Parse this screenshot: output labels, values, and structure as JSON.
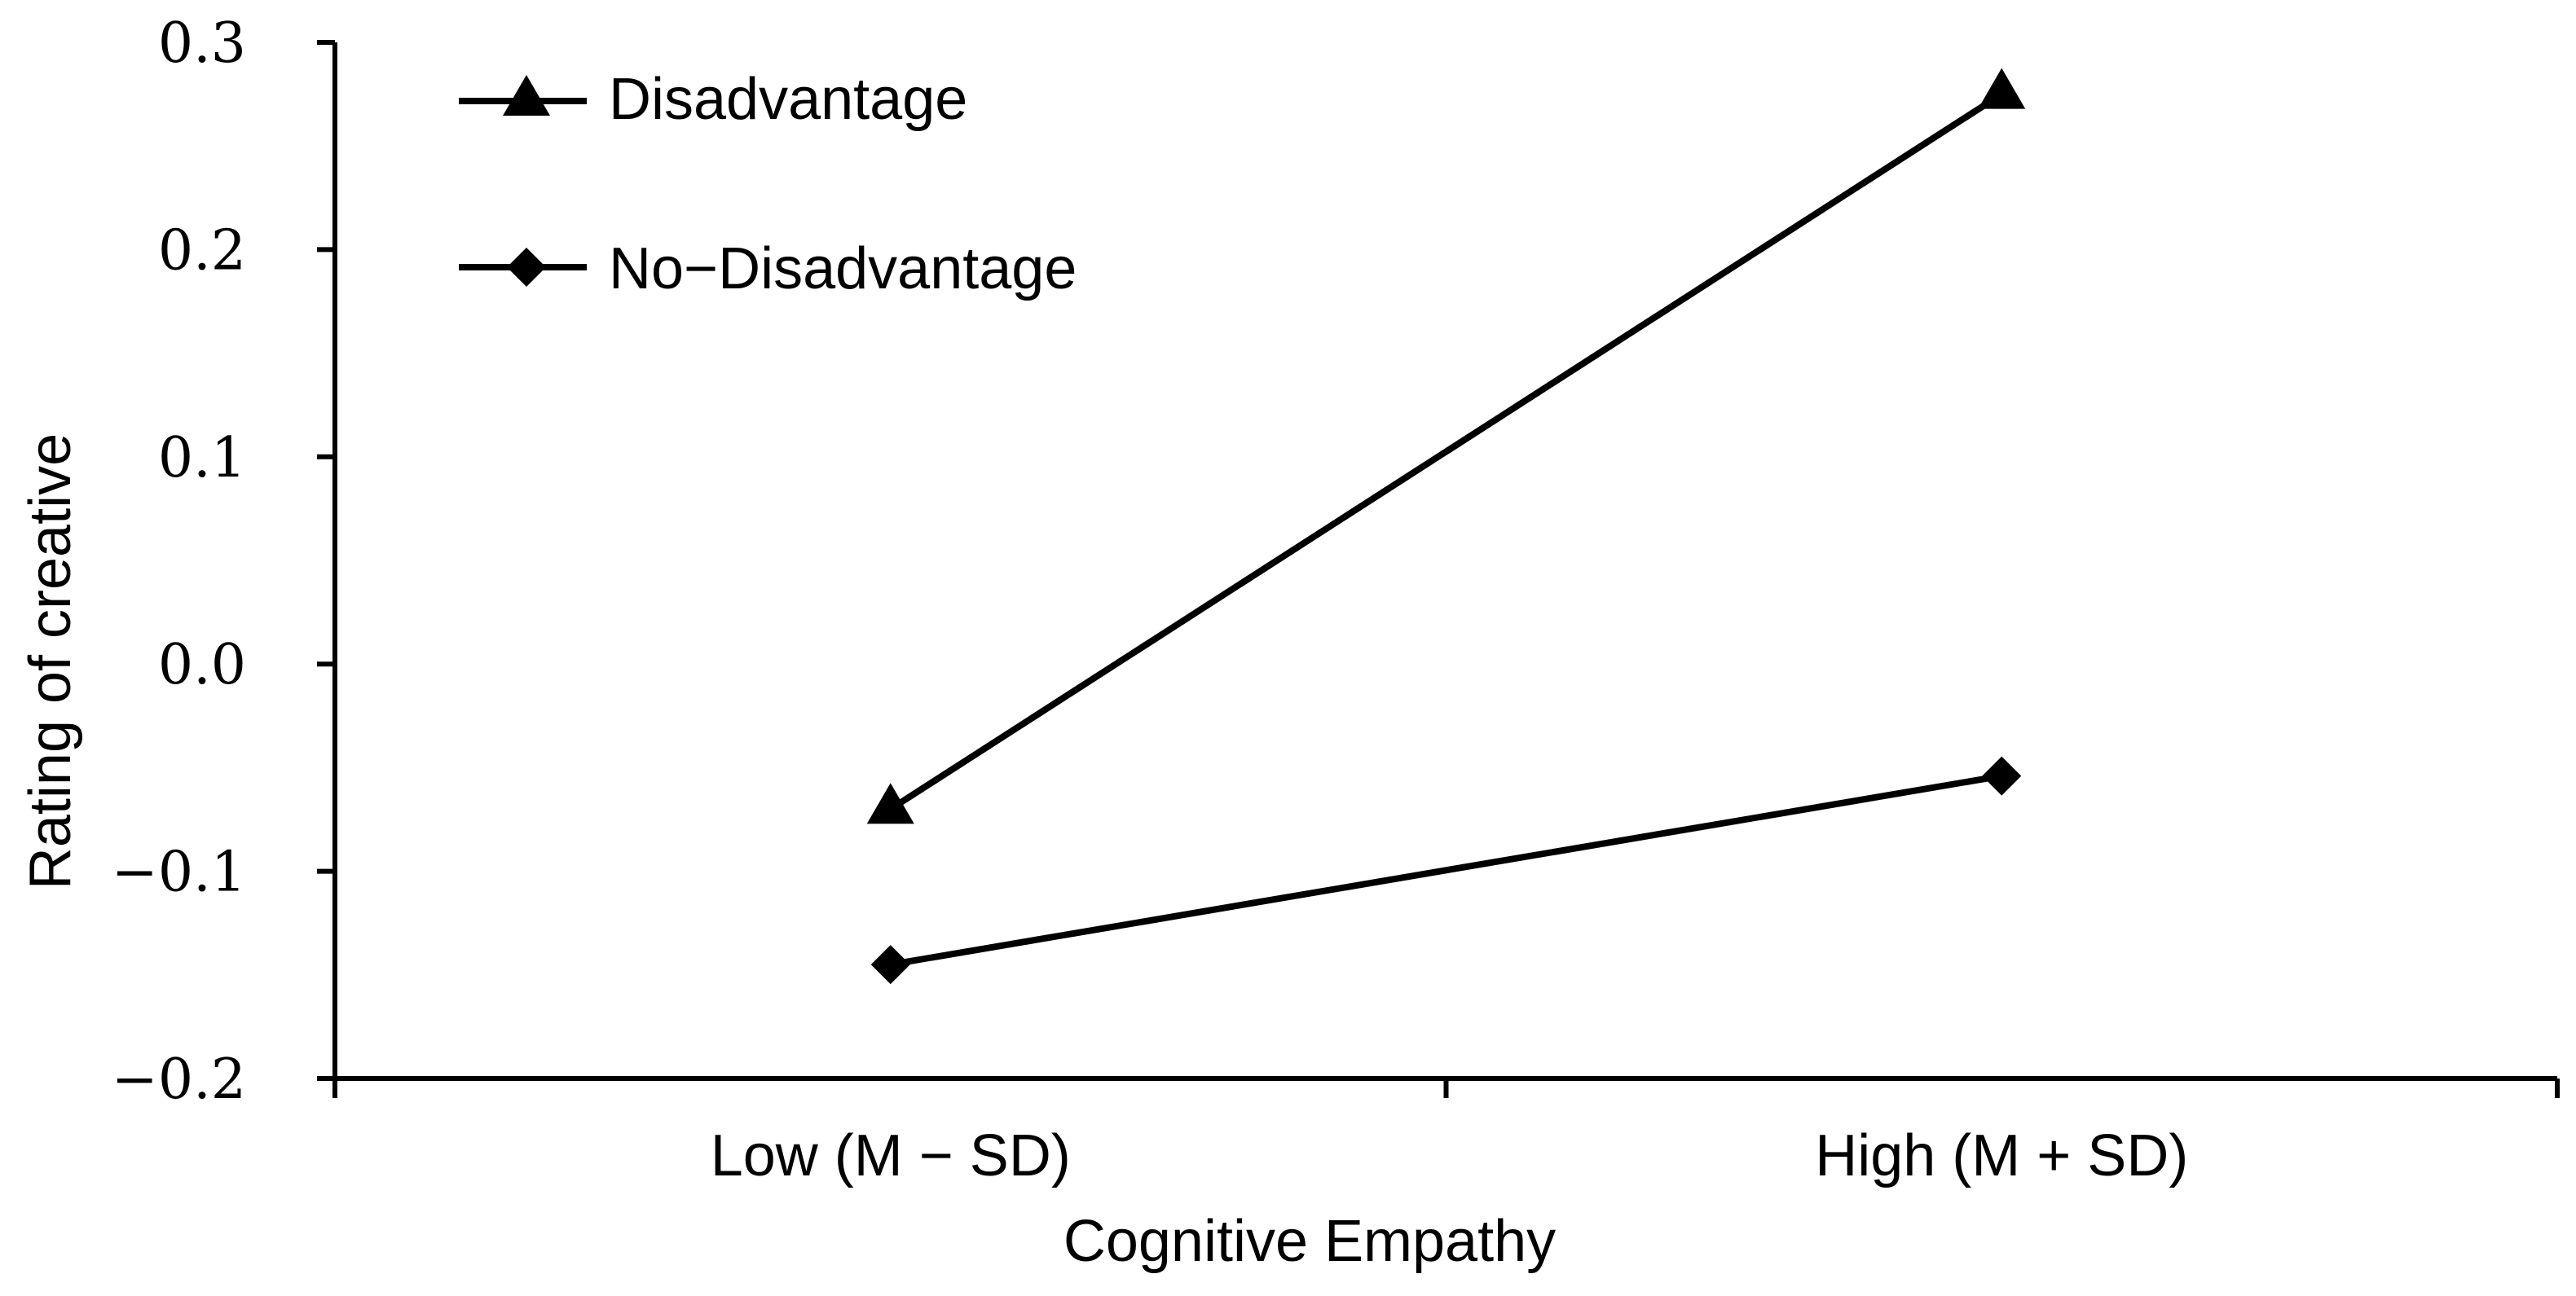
{
  "chart_data": {
    "type": "line",
    "title": "",
    "xlabel": "Cognitive Empathy",
    "ylabel": "Rating of creative",
    "categories": [
      "Low (M − SD)",
      "High (M + SD)"
    ],
    "ylim": [
      -0.2,
      0.3
    ],
    "yticks": [
      {
        "value": 0.3,
        "label": "0.3"
      },
      {
        "value": 0.2,
        "label": "0.2"
      },
      {
        "value": 0.1,
        "label": "0.1"
      },
      {
        "value": 0.0,
        "label": "0.0"
      },
      {
        "value": -0.1,
        "label": "−0.1"
      },
      {
        "value": -0.2,
        "label": "−0.2"
      }
    ],
    "grid": false,
    "legend_position": "top-left",
    "series": [
      {
        "name": "Disadvantage",
        "marker": "triangle",
        "values": [
          -0.07,
          0.275
        ]
      },
      {
        "name": "No−Disadvantage",
        "marker": "diamond",
        "values": [
          -0.145,
          -0.054
        ]
      }
    ],
    "colors": {
      "line": "#000000",
      "axis": "#000000",
      "background": "#ffffff"
    }
  }
}
